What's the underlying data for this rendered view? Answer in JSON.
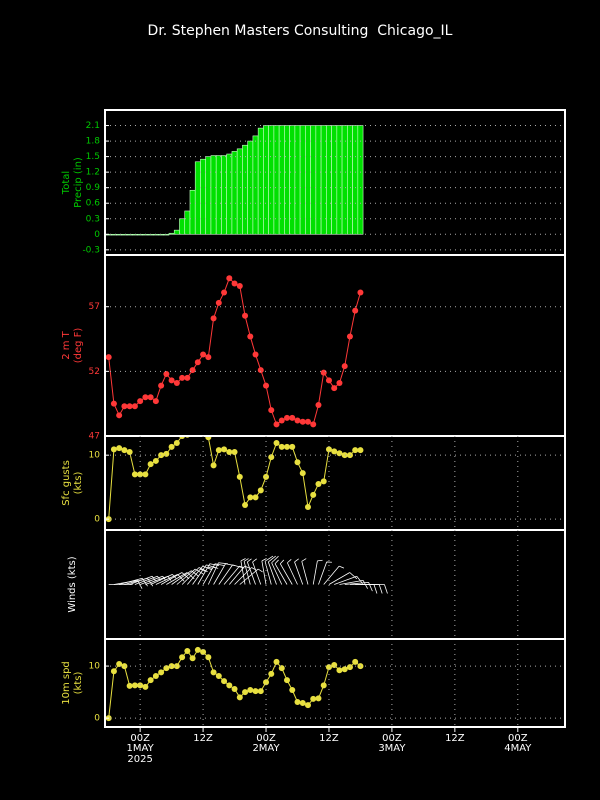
{
  "chart_data": [
    {
      "type": "bar",
      "title": "Dr. Stephen Masters Consulting  Chicago_IL",
      "ylabel": [
        "Total",
        "Precip (in)"
      ],
      "color": "#00e000",
      "label_color": "#00c800",
      "x": [
        -6,
        -5,
        -4,
        -3,
        -2,
        -1,
        0,
        1,
        2,
        3,
        4,
        5,
        6,
        7,
        8,
        9,
        10,
        11,
        12,
        13,
        14,
        15,
        16,
        17,
        18,
        19,
        20,
        21,
        22,
        23,
        24,
        25,
        26,
        27,
        28,
        29,
        30,
        31,
        32,
        33,
        34,
        35,
        36,
        37,
        38,
        39,
        40,
        41,
        42
      ],
      "values": [
        0,
        0,
        0,
        0,
        0,
        0,
        0,
        0,
        0,
        0,
        0,
        0,
        0.02,
        0.08,
        0.3,
        0.45,
        0.85,
        1.4,
        1.45,
        1.5,
        1.52,
        1.52,
        1.52,
        1.55,
        1.6,
        1.65,
        1.72,
        1.8,
        1.9,
        2.05,
        2.1,
        2.1,
        2.1,
        2.1,
        2.1,
        2.1,
        2.1,
        2.1,
        2.1,
        2.1,
        2.1,
        2.1,
        2.1,
        2.1,
        2.1,
        2.1,
        2.1,
        2.1,
        2.1
      ],
      "xlim": [
        -6.7,
        81
      ],
      "ylim": [
        -0.4,
        2.4
      ],
      "yticks": [
        -0.3,
        0,
        0.3,
        0.6,
        0.9,
        1.2,
        1.5,
        1.8,
        2.1
      ],
      "grid": true
    },
    {
      "type": "line",
      "ylabel": [
        "2 m T",
        "(deg F)"
      ],
      "color": "#ff3838",
      "label_color": "#ff3838",
      "x": [
        -6,
        -5,
        -4,
        -3,
        -2,
        -1,
        0,
        1,
        2,
        3,
        4,
        5,
        6,
        7,
        8,
        9,
        10,
        11,
        12,
        13,
        14,
        15,
        16,
        17,
        18,
        19,
        20,
        21,
        22,
        23,
        24,
        25,
        26,
        27,
        28,
        29,
        30,
        31,
        32,
        33,
        34,
        35,
        36,
        37,
        38,
        39,
        40,
        41,
        42
      ],
      "values": [
        53.1,
        49.5,
        48.6,
        49.3,
        49.3,
        49.3,
        49.7,
        50.0,
        50.0,
        49.7,
        50.9,
        51.8,
        51.3,
        51.1,
        51.5,
        51.5,
        52.1,
        52.7,
        53.3,
        53.1,
        56.1,
        57.3,
        58.1,
        59.2,
        58.8,
        58.6,
        56.3,
        54.7,
        53.3,
        52.1,
        50.9,
        49.0,
        47.9,
        48.2,
        48.4,
        48.4,
        48.2,
        48.1,
        48.1,
        47.9,
        49.4,
        51.9,
        51.3,
        50.7,
        51.1,
        52.4,
        54.7,
        56.7,
        58.1
      ],
      "xlim": [
        -6.7,
        81
      ],
      "ylim": [
        47,
        61
      ],
      "yticks": [
        47,
        52,
        57
      ],
      "grid": true
    },
    {
      "type": "line",
      "ylabel": [
        "Sfc gusts",
        "(kts)"
      ],
      "color": "#e8e040",
      "label_color": "#e8e040",
      "x": [
        -6,
        -5,
        -4,
        -3,
        -2,
        -1,
        0,
        1,
        2,
        3,
        4,
        5,
        6,
        7,
        8,
        9,
        10,
        11,
        12,
        13,
        14,
        15,
        16,
        17,
        18,
        19,
        20,
        21,
        22,
        23,
        24,
        25,
        26,
        27,
        28,
        29,
        30,
        31,
        32,
        33,
        34,
        35,
        36,
        37,
        38,
        39,
        40,
        41,
        42
      ],
      "values": [
        0,
        10.9,
        11.1,
        10.8,
        10.5,
        7.0,
        7.0,
        7.0,
        8.6,
        9.1,
        10.0,
        10.2,
        11.3,
        11.9,
        13.0,
        13.2,
        13.6,
        13.5,
        13.6,
        12.8,
        8.4,
        10.8,
        10.9,
        10.5,
        10.5,
        6.6,
        2.2,
        3.4,
        3.4,
        4.5,
        6.6,
        9.7,
        11.9,
        11.3,
        11.3,
        11.3,
        8.9,
        7.2,
        1.9,
        3.8,
        5.5,
        5.9,
        10.9,
        10.6,
        10.3,
        10.0,
        10.0,
        10.8,
        10.8
      ],
      "xlim": [
        -6.7,
        81
      ],
      "ylim": [
        -1.7,
        13
      ],
      "yticks": [
        0,
        10
      ],
      "grid": true
    },
    {
      "type": "barbs",
      "ylabel": [
        "Winds (kts)"
      ],
      "color": "#ffffff",
      "label_color": "#ffffff",
      "x": [
        -6,
        -5,
        -4,
        -3,
        -2,
        -1,
        0,
        1,
        2,
        3,
        4,
        5,
        6,
        7,
        8,
        9,
        10,
        11,
        12,
        13,
        14,
        15,
        16,
        17,
        18,
        19,
        20,
        21,
        22,
        23,
        24,
        25,
        26,
        27,
        28,
        29,
        30,
        31,
        32,
        33,
        34,
        35,
        36,
        37,
        38,
        39,
        40,
        41,
        42
      ],
      "directions": [
        90,
        80,
        75,
        75,
        70,
        70,
        70,
        70,
        65,
        65,
        60,
        60,
        55,
        50,
        45,
        40,
        35,
        30,
        30,
        25,
        30,
        35,
        40,
        40,
        45,
        50,
        350,
        345,
        340,
        340,
        350,
        345,
        340,
        335,
        330,
        330,
        335,
        340,
        345,
        10,
        20,
        40,
        60,
        70,
        80,
        85,
        90,
        90,
        90
      ],
      "xlim": [
        -6.7,
        81
      ]
    },
    {
      "type": "line",
      "ylabel": [
        "10m spd",
        "(kts)"
      ],
      "color": "#e8e040",
      "label_color": "#e8e040",
      "x": [
        -6,
        -5,
        -4,
        -3,
        -2,
        -1,
        0,
        1,
        2,
        3,
        4,
        5,
        6,
        7,
        8,
        9,
        10,
        11,
        12,
        13,
        14,
        15,
        16,
        17,
        18,
        19,
        20,
        21,
        22,
        23,
        24,
        25,
        26,
        27,
        28,
        29,
        30,
        31,
        32,
        33,
        34,
        35,
        36,
        37,
        38,
        39,
        40,
        41,
        42
      ],
      "values": [
        0,
        9.0,
        10.4,
        10.0,
        6.2,
        6.3,
        6.3,
        6.0,
        7.3,
        8.1,
        8.8,
        9.6,
        10.0,
        10.0,
        11.7,
        12.9,
        11.5,
        13.1,
        12.7,
        11.7,
        8.8,
        8.1,
        7.1,
        6.3,
        5.6,
        4.0,
        5.0,
        5.4,
        5.2,
        5.2,
        6.9,
        8.5,
        10.8,
        9.6,
        7.3,
        5.4,
        3.1,
        2.9,
        2.5,
        3.7,
        3.8,
        6.3,
        9.8,
        10.2,
        9.2,
        9.4,
        9.8,
        10.8,
        10.0
      ],
      "xlim": [
        -6.7,
        81
      ],
      "ylim": [
        -1.7,
        15.2
      ],
      "yticks": [
        0,
        10
      ],
      "grid": true,
      "xgrid": true,
      "xticks": [
        {
          "value": 0,
          "label": "00Z"
        },
        {
          "value": 12,
          "label": "12Z"
        },
        {
          "value": 24,
          "label": "00Z"
        },
        {
          "value": 36,
          "label": "12Z"
        },
        {
          "value": 48,
          "label": "00Z"
        },
        {
          "value": 60,
          "label": "12Z"
        },
        {
          "value": 72,
          "label": "00Z"
        }
      ],
      "date_labels": [
        {
          "value": 0,
          "label": "1MAY"
        },
        {
          "value": 24,
          "label": "2MAY"
        },
        {
          "value": 48,
          "label": "3MAY"
        },
        {
          "value": 72,
          "label": "4MAY"
        }
      ],
      "year": "2025"
    }
  ]
}
